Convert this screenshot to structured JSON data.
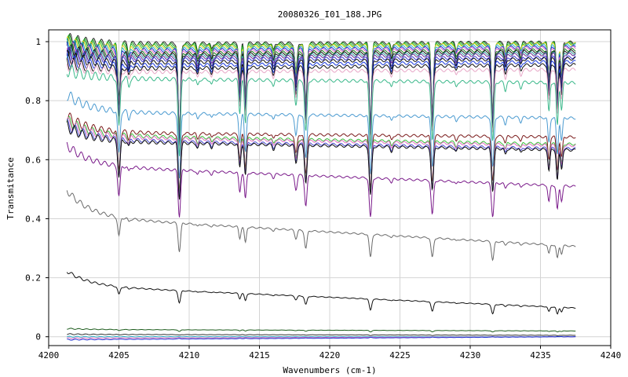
{
  "chart_data": {
    "type": "line",
    "title": "20080326_I01_188.JPG",
    "xlabel": "Wavenumbers (cm-1)",
    "ylabel": "Transmitance",
    "xlim": [
      4200,
      4240
    ],
    "ylim": [
      -0.03,
      1.04
    ],
    "x_ticks": [
      4200,
      4205,
      4210,
      4215,
      4220,
      4225,
      4230,
      4235,
      4240
    ],
    "y_ticks": [
      0,
      0.2,
      0.4,
      0.6,
      0.8,
      1
    ],
    "x_data_range": [
      4201.3,
      4237.5
    ],
    "grid": true,
    "legend": "none",
    "absorption_lines": [
      {
        "x": 4205.0,
        "depth": 0.9,
        "width": 0.12
      },
      {
        "x": 4205.7,
        "depth": 0.15,
        "width": 0.1
      },
      {
        "x": 4209.3,
        "depth": 1.4,
        "width": 0.12
      },
      {
        "x": 4210.6,
        "depth": 0.12,
        "width": 0.1
      },
      {
        "x": 4211.6,
        "depth": 0.1,
        "width": 0.1
      },
      {
        "x": 4213.6,
        "depth": 0.6,
        "width": 0.1
      },
      {
        "x": 4214.0,
        "depth": 0.8,
        "width": 0.1
      },
      {
        "x": 4216.0,
        "depth": 0.12,
        "width": 0.1
      },
      {
        "x": 4217.6,
        "depth": 0.45,
        "width": 0.12
      },
      {
        "x": 4218.3,
        "depth": 0.95,
        "width": 0.12
      },
      {
        "x": 4222.9,
        "depth": 1.25,
        "width": 0.12
      },
      {
        "x": 4224.4,
        "depth": 0.12,
        "width": 0.1
      },
      {
        "x": 4227.3,
        "depth": 1.1,
        "width": 0.12
      },
      {
        "x": 4229.0,
        "depth": 0.1,
        "width": 0.1
      },
      {
        "x": 4231.6,
        "depth": 1.1,
        "width": 0.12
      },
      {
        "x": 4232.5,
        "depth": 0.15,
        "width": 0.1
      },
      {
        "x": 4233.6,
        "depth": 0.1,
        "width": 0.1
      },
      {
        "x": 4235.6,
        "depth": 0.55,
        "width": 0.1
      },
      {
        "x": 4236.2,
        "depth": 0.8,
        "width": 0.1
      },
      {
        "x": 4236.5,
        "depth": 0.5,
        "width": 0.1
      }
    ],
    "series": [
      {
        "color": "#2a2a2a",
        "start": 0.995,
        "end": 1.0,
        "tilt": 0.015,
        "ripple": 0.012
      },
      {
        "color": "#1a8a1a",
        "start": 0.99,
        "end": 0.998,
        "tilt": 0.015,
        "ripple": 0.012
      },
      {
        "color": "#2ec22e",
        "start": 0.985,
        "end": 0.995,
        "tilt": 0.015,
        "ripple": 0.012
      },
      {
        "color": "#e0d020",
        "start": 0.98,
        "end": 0.995,
        "tilt": 0.015,
        "ripple": 0.012
      },
      {
        "color": "#2ab0c8",
        "start": 0.975,
        "end": 0.99,
        "tilt": 0.015,
        "ripple": 0.012
      },
      {
        "color": "#1e2fd0",
        "start": 0.97,
        "end": 0.985,
        "tilt": 0.016,
        "ripple": 0.012
      },
      {
        "color": "#e070c0",
        "start": 0.965,
        "end": 0.982,
        "tilt": 0.016,
        "ripple": 0.012
      },
      {
        "color": "#1a7a1a",
        "start": 0.96,
        "end": 0.975,
        "tilt": 0.017,
        "ripple": 0.012
      },
      {
        "color": "#101010",
        "start": 0.955,
        "end": 0.97,
        "tilt": 0.017,
        "ripple": 0.012
      },
      {
        "color": "#30a0a0",
        "start": 0.95,
        "end": 0.965,
        "tilt": 0.018,
        "ripple": 0.012
      },
      {
        "color": "#6a2a90",
        "start": 0.945,
        "end": 0.96,
        "tilt": 0.018,
        "ripple": 0.012
      },
      {
        "color": "#3a3ad0",
        "start": 0.94,
        "end": 0.95,
        "tilt": 0.018,
        "ripple": 0.012
      },
      {
        "color": "#101010",
        "start": 0.93,
        "end": 0.945,
        "tilt": 0.02,
        "ripple": 0.012
      },
      {
        "color": "#1a3ae0",
        "start": 0.92,
        "end": 0.935,
        "tilt": 0.02,
        "ripple": 0.012
      },
      {
        "color": "#101010",
        "start": 0.91,
        "end": 0.925,
        "tilt": 0.022,
        "ripple": 0.012
      },
      {
        "color": "#e8a8c8",
        "start": 0.9,
        "end": 0.91,
        "tilt": 0.03,
        "ripple": 0.012
      },
      {
        "color": "#3ab88a",
        "start": 0.88,
        "end": 0.865,
        "tilt": 0.03,
        "ripple": 0.012
      },
      {
        "color": "#4a9ad0",
        "start": 0.77,
        "end": 0.75,
        "tilt": 0.06,
        "ripple": 0.01
      },
      {
        "color": "#7a1a1a",
        "start": 0.7,
        "end": 0.685,
        "tilt": 0.055,
        "ripple": 0.01
      },
      {
        "color": "#3ac03a",
        "start": 0.69,
        "end": 0.66,
        "tilt": 0.05,
        "ripple": 0.01
      },
      {
        "color": "#e070c0",
        "start": 0.685,
        "end": 0.655,
        "tilt": 0.05,
        "ripple": 0.01
      },
      {
        "color": "#4a4ad0",
        "start": 0.675,
        "end": 0.645,
        "tilt": 0.05,
        "ripple": 0.01
      },
      {
        "color": "#101010",
        "start": 0.67,
        "end": 0.64,
        "tilt": 0.05,
        "ripple": 0.01
      },
      {
        "color": "#7a1a8a",
        "start": 0.59,
        "end": 0.52,
        "tilt": 0.07,
        "ripple": 0.008
      },
      {
        "color": "#6a6a6a",
        "start": 0.42,
        "end": 0.32,
        "tilt": 0.09,
        "ripple": 0.006
      },
      {
        "color": "#101010",
        "start": 0.18,
        "end": 0.105,
        "tilt": 0.05,
        "ripple": 0.003
      },
      {
        "color": "#1a5a1a",
        "start": 0.025,
        "end": 0.02,
        "tilt": 0.003,
        "ripple": 0.001
      },
      {
        "color": "#303030",
        "start": 0.008,
        "end": 0.005,
        "tilt": 0.001,
        "ripple": 0.001
      },
      {
        "color": "#2ab0c8",
        "start": 0.0,
        "end": 0.0,
        "tilt": 0.0,
        "ripple": 0.001
      },
      {
        "color": "#e070c0",
        "start": -0.005,
        "end": 0.0,
        "tilt": 0.0,
        "ripple": 0.001
      },
      {
        "color": "#1e2fd0",
        "start": -0.01,
        "end": 0.0,
        "tilt": 0.0,
        "ripple": 0.001
      }
    ]
  }
}
